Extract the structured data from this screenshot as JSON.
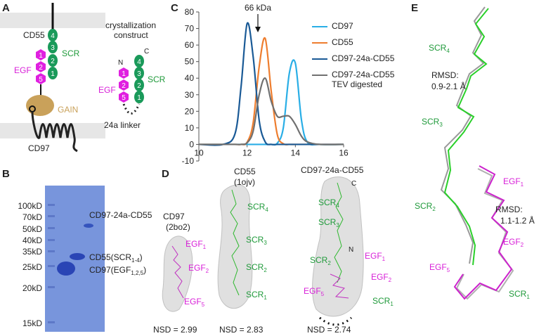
{
  "panel_letters": [
    "A",
    "B",
    "C",
    "D",
    "E"
  ],
  "panel_a": {
    "cd55": "CD55",
    "scr": "SCR",
    "egf": "EGF",
    "gain": "GAIN",
    "cd97": "CD97",
    "scr_numbers": [
      "4",
      "3",
      "2",
      "1"
    ],
    "egf_numbers": [
      "1",
      "2",
      "5"
    ],
    "construct_title": [
      "crystallization",
      "construct"
    ],
    "n": "N",
    "c": "C",
    "egf2": "EGF",
    "scr2": "SCR",
    "linker": "24a linker"
  },
  "panel_b": {
    "markers": [
      "100kD",
      "70kD",
      "50kD",
      "40kD",
      "35kD",
      "25kD",
      "20kD",
      "15kD"
    ],
    "bands": [
      {
        "text": "CD97-24a-CD55"
      },
      {
        "text": "CD55(SCR",
        "sub": "1-4",
        "after": ")"
      },
      {
        "text": "CD97(EGF",
        "sub": "1,2,5",
        "after": ")"
      }
    ]
  },
  "chart_data": {
    "type": "line",
    "annotation": "66 kDa",
    "x": [
      10,
      11,
      11.5,
      11.75,
      12,
      12.25,
      12.5,
      12.75,
      13,
      13.25,
      13.5,
      13.75,
      14,
      14.25,
      14.5,
      15,
      16
    ],
    "series": [
      {
        "name": "CD97",
        "color": "#29aee6",
        "values": [
          0,
          0,
          0,
          0,
          0,
          0,
          0,
          0,
          0,
          0.7,
          10,
          43,
          49,
          15,
          1.3,
          0,
          0
        ]
      },
      {
        "name": "CD55",
        "color": "#ee7d2e",
        "values": [
          0,
          0,
          0,
          0,
          1.3,
          13,
          47,
          64,
          32,
          6,
          0.4,
          0,
          0,
          0,
          0,
          0,
          0
        ]
      },
      {
        "name": "CD97-24a-CD55",
        "color": "#1a5a96",
        "values": [
          0,
          0,
          6.5,
          35,
          73,
          53,
          14.5,
          1.5,
          0,
          0,
          0,
          0,
          0,
          0,
          0,
          0,
          0
        ]
      },
      {
        "name": "CD97-24a-CD55 TEV digested",
        "color": "#707070",
        "values": [
          0,
          0,
          0,
          0,
          1,
          8,
          30,
          40,
          26,
          17,
          17,
          17,
          12,
          5,
          1.5,
          0,
          0
        ]
      }
    ],
    "xlim": [
      10,
      16
    ],
    "xticks": [
      10,
      12,
      14,
      16
    ],
    "ylim": [
      -10,
      80
    ],
    "yticks": [
      -10,
      0,
      10,
      20,
      30,
      40,
      50,
      60,
      70,
      80
    ]
  },
  "panel_d": {
    "models": [
      {
        "name": "CD97",
        "pdb": "(2bo2)",
        "labels": [
          {
            "text": "EGF",
            "sub": "1"
          },
          {
            "text": "EGF",
            "sub": "2"
          },
          {
            "text": "EGF",
            "sub": "5"
          }
        ],
        "nsd": "NSD = 2.99"
      },
      {
        "name": "CD55",
        "pdb": "(1ojv)",
        "labels": [
          {
            "text": "SCR",
            "sub": "4"
          },
          {
            "text": "SCR",
            "sub": "3"
          },
          {
            "text": "SCR",
            "sub": "2"
          },
          {
            "text": "SCR",
            "sub": "1"
          }
        ],
        "nsd": "NSD = 2.83"
      },
      {
        "name": "CD97-24a-CD55",
        "c": "C",
        "n": "N",
        "labels": [
          {
            "text": "SCR",
            "sub": "4"
          },
          {
            "text": "SCR",
            "sub": "3"
          },
          {
            "text": "SCR",
            "sub": "2"
          },
          {
            "text": "EGF",
            "sub": "1"
          },
          {
            "text": "EGF",
            "sub": "2"
          },
          {
            "text": "EGF",
            "sub": "5"
          },
          {
            "text": "SCR",
            "sub": "1"
          }
        ],
        "nsd": "NSD = 2.74"
      }
    ]
  },
  "panel_e": {
    "labels": [
      {
        "text": "SCR",
        "sub": "4"
      },
      {
        "text": "SCR",
        "sub": "3"
      },
      {
        "text": "SCR",
        "sub": "2"
      },
      {
        "text": "EGF",
        "sub": "1"
      },
      {
        "text": "EGF",
        "sub": "2"
      },
      {
        "text": "EGF",
        "sub": "5"
      },
      {
        "text": "SCR",
        "sub": "1"
      }
    ],
    "rmsd1": [
      "RMSD:",
      "0.9-2.1 Å"
    ],
    "rmsd2": [
      "RMSD:",
      "1.1-1.2 Å"
    ]
  }
}
